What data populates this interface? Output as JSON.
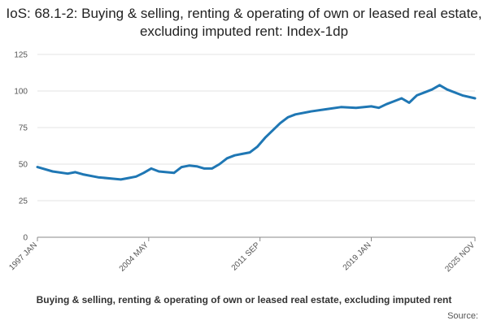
{
  "chart_data": {
    "type": "line",
    "title": "IoS: 68.1-2: Buying & selling, renting & operating of own or leased real estate, excluding imputed rent: Index-1dp",
    "ylim": [
      0,
      125
    ],
    "y_ticks": [
      "0",
      "25",
      "50",
      "75",
      "100",
      "125"
    ],
    "x_tick_labels": [
      "1997 JAN",
      "2004 MAY",
      "2011 SEP",
      "2019 JAN",
      "2025 NOV"
    ],
    "grid": true,
    "legend_position": "bottom",
    "line_color": "#1f77b4",
    "series": [
      {
        "name": "Buying & selling, renting & operating of own or leased real estate, excluding imputed rent",
        "x": [
          "1997-01",
          "1998-01",
          "1999-01",
          "1999-07",
          "2000-01",
          "2001-01",
          "2002-01",
          "2002-07",
          "2003-01",
          "2003-07",
          "2004-01",
          "2004-07",
          "2005-01",
          "2006-01",
          "2006-07",
          "2007-01",
          "2007-07",
          "2008-01",
          "2008-07",
          "2009-01",
          "2009-07",
          "2010-01",
          "2010-07",
          "2011-01",
          "2011-07",
          "2012-01",
          "2012-07",
          "2013-01",
          "2013-07",
          "2014-01",
          "2015-01",
          "2016-01",
          "2017-01",
          "2018-01",
          "2019-01",
          "2019-07",
          "2020-01",
          "2020-07",
          "2021-01",
          "2021-07",
          "2022-01",
          "2022-07",
          "2023-01",
          "2023-07",
          "2024-01",
          "2025-01",
          "2025-11"
        ],
        "values": [
          48,
          45,
          43.5,
          44.5,
          43,
          41,
          40,
          39.5,
          40.5,
          41.5,
          44,
          47,
          45,
          44,
          48,
          49,
          48.5,
          47,
          47,
          50,
          54,
          56,
          57,
          58,
          62,
          68,
          73,
          78,
          82,
          84,
          86,
          87.5,
          89,
          88.5,
          89.5,
          88.5,
          91,
          93,
          95,
          92,
          97,
          99,
          101,
          104,
          101,
          97,
          95
        ]
      }
    ]
  },
  "legend": {
    "label": "Buying & selling, renting & operating of own or leased real estate, excluding imputed rent"
  },
  "source": {
    "label": "Source:"
  }
}
